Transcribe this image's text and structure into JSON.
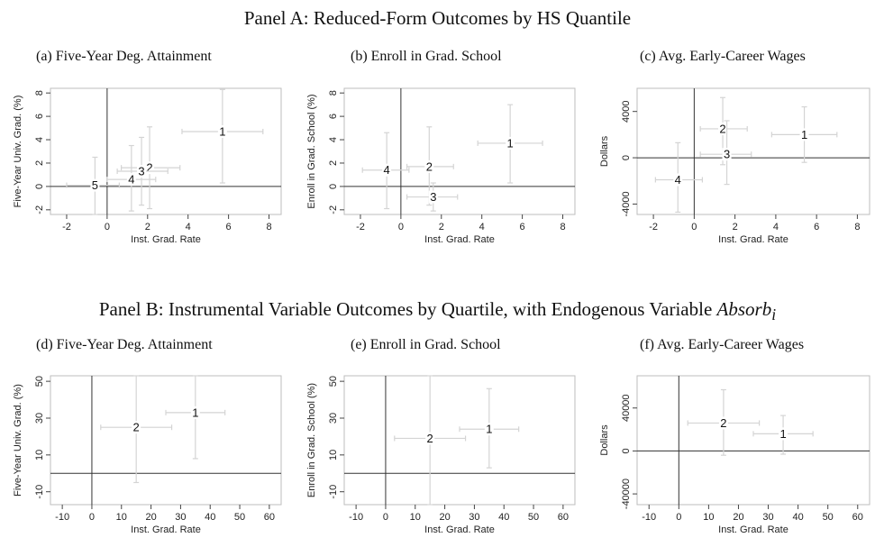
{
  "panel_a_title": "Panel A: Reduced-Form Outcomes by HS Quantile",
  "panel_b_title_prefix": "Panel B: Instrumental Variable Outcomes by Quartile, with Endogenous Variable ",
  "panel_b_title_var": "Absorb",
  "panel_b_title_sub": "i",
  "chart_data": [
    {
      "id": "a",
      "type": "scatter",
      "title": "(a) Five-Year Deg. Attainment",
      "xlabel": "Inst. Grad. Rate",
      "ylabel": "Five-Year Univ. Grad. (%)",
      "xlim": [
        -2.8,
        8.6
      ],
      "ylim": [
        -2.4,
        8.4
      ],
      "xticks": [
        -2,
        0,
        2,
        4,
        6,
        8
      ],
      "yticks": [
        -2,
        0,
        2,
        4,
        6,
        8
      ],
      "points": [
        {
          "label": "1",
          "x": 5.7,
          "y": 4.7,
          "xlo": 3.7,
          "xhi": 7.7,
          "ylo": 0.3,
          "yhi": 8.3
        },
        {
          "label": "2",
          "x": 2.1,
          "y": 1.6,
          "xlo": 0.7,
          "xhi": 3.6,
          "ylo": -1.9,
          "yhi": 5.1
        },
        {
          "label": "3",
          "x": 1.7,
          "y": 1.3,
          "xlo": 0.5,
          "xhi": 3.0,
          "ylo": -1.6,
          "yhi": 4.2
        },
        {
          "label": "4",
          "x": 1.2,
          "y": 0.6,
          "xlo": 0.0,
          "xhi": 2.4,
          "ylo": -2.1,
          "yhi": 3.5
        },
        {
          "label": "5",
          "x": -0.6,
          "y": 0.1,
          "xlo": -2.0,
          "xhi": 0.6,
          "ylo": -2.4,
          "yhi": 2.5
        }
      ]
    },
    {
      "id": "b",
      "type": "scatter",
      "title": "(b) Enroll in Grad. School",
      "xlabel": "Inst. Grad. Rate",
      "ylabel": "Enroll in Grad. School (%)",
      "xlim": [
        -2.8,
        8.6
      ],
      "ylim": [
        -2.4,
        8.4
      ],
      "xticks": [
        -2,
        0,
        2,
        4,
        6,
        8
      ],
      "yticks": [
        -2,
        0,
        2,
        4,
        6,
        8
      ],
      "points": [
        {
          "label": "1",
          "x": 5.4,
          "y": 3.7,
          "xlo": 3.8,
          "xhi": 7.0,
          "ylo": 0.3,
          "yhi": 7.0
        },
        {
          "label": "2",
          "x": 1.4,
          "y": 1.7,
          "xlo": 0.3,
          "xhi": 2.6,
          "ylo": -1.6,
          "yhi": 5.1
        },
        {
          "label": "3",
          "x": 1.6,
          "y": -0.9,
          "xlo": 0.3,
          "xhi": 2.8,
          "ylo": -2.1,
          "yhi": 0.3
        },
        {
          "label": "4",
          "x": -0.7,
          "y": 1.4,
          "xlo": -1.9,
          "xhi": 0.4,
          "ylo": -1.9,
          "yhi": 4.6
        }
      ]
    },
    {
      "id": "c",
      "type": "scatter",
      "title": "(c) Avg. Early-Career Wages",
      "xlabel": "Inst. Grad. Rate",
      "ylabel": "Dollars",
      "xlim": [
        -2.8,
        8.6
      ],
      "ylim": [
        -4900,
        6000
      ],
      "xticks": [
        -2,
        0,
        2,
        4,
        6,
        8
      ],
      "yticks": [
        -4000,
        0,
        4000
      ],
      "points": [
        {
          "label": "1",
          "x": 5.4,
          "y": 2000,
          "xlo": 3.8,
          "xhi": 7.0,
          "ylo": -400,
          "yhi": 4400
        },
        {
          "label": "2",
          "x": 1.4,
          "y": 2500,
          "xlo": 0.3,
          "xhi": 2.6,
          "ylo": -600,
          "yhi": 5200
        },
        {
          "label": "3",
          "x": 1.6,
          "y": 300,
          "xlo": 0.3,
          "xhi": 2.8,
          "ylo": -2300,
          "yhi": 3200
        },
        {
          "label": "4",
          "x": -0.8,
          "y": -1900,
          "xlo": -1.9,
          "xhi": 0.4,
          "ylo": -4700,
          "yhi": 1300
        }
      ]
    },
    {
      "id": "d",
      "type": "scatter",
      "title": "(d) Five-Year Deg. Attainment",
      "xlabel": "Inst. Grad. Rate",
      "ylabel": "Five-Year Univ. Grad. (%)",
      "xlim": [
        -14,
        64
      ],
      "ylim": [
        -17,
        53
      ],
      "xticks": [
        -10,
        0,
        10,
        20,
        30,
        40,
        50,
        60
      ],
      "yticks": [
        -10,
        10,
        30,
        50
      ],
      "points": [
        {
          "label": "1",
          "x": 35,
          "y": 33,
          "xlo": 25,
          "xhi": 45,
          "ylo": 8,
          "yhi": 53
        },
        {
          "label": "2",
          "x": 15,
          "y": 25,
          "xlo": 3,
          "xhi": 27,
          "ylo": -5,
          "yhi": 53
        }
      ]
    },
    {
      "id": "e",
      "type": "scatter",
      "title": "(e) Enroll in Grad. School",
      "xlabel": "Inst. Grad. Rate",
      "ylabel": "Enroll in Grad. School (%)",
      "xlim": [
        -14,
        64
      ],
      "ylim": [
        -17,
        53
      ],
      "xticks": [
        -10,
        0,
        10,
        20,
        30,
        40,
        50,
        60
      ],
      "yticks": [
        -10,
        10,
        30,
        50
      ],
      "points": [
        {
          "label": "1",
          "x": 35,
          "y": 24,
          "xlo": 25,
          "xhi": 45,
          "ylo": 3,
          "yhi": 46
        },
        {
          "label": "2",
          "x": 15,
          "y": 19,
          "xlo": 3,
          "xhi": 27,
          "ylo": -17,
          "yhi": 53
        }
      ]
    },
    {
      "id": "f",
      "type": "scatter",
      "title": "(f) Avg. Early-Career Wages",
      "xlabel": "Inst. Grad. Rate",
      "ylabel": "Dollars",
      "xlim": [
        -14,
        64
      ],
      "ylim": [
        -50000,
        70000
      ],
      "xticks": [
        -10,
        0,
        10,
        20,
        30,
        40,
        50,
        60
      ],
      "yticks": [
        -40000,
        0,
        40000
      ],
      "points": [
        {
          "label": "1",
          "x": 35,
          "y": 16000,
          "xlo": 25,
          "xhi": 45,
          "ylo": -3000,
          "yhi": 33000
        },
        {
          "label": "2",
          "x": 15,
          "y": 26000,
          "xlo": 3,
          "xhi": 27,
          "ylo": -4000,
          "yhi": 57000
        }
      ]
    }
  ]
}
